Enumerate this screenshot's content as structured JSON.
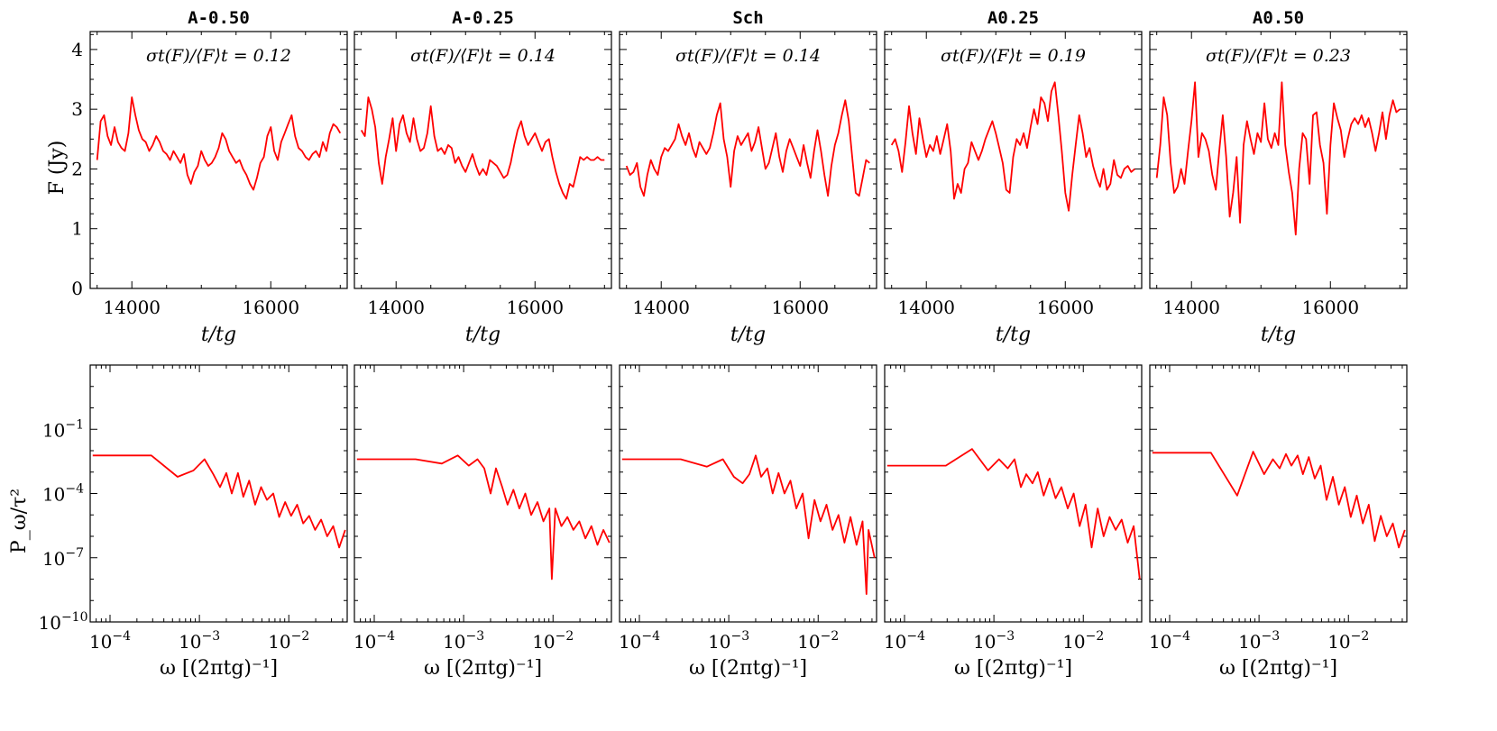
{
  "figure": {
    "colors": {
      "line": "#ff0000",
      "axis": "#000000",
      "background": "#ffffff"
    },
    "row_labels": {
      "top_ylabel": "F (Jy)",
      "top_xlabel": "t/t_g",
      "bottom_ylabel": "P_ω/τ²",
      "bottom_xlabel": "ω [(2πt_g)⁻¹]"
    }
  },
  "chart_data": [
    {
      "type": "line",
      "panel": "A-0.50",
      "row": "light curve",
      "title": "A-0.50",
      "annotation": "σt(F)/⟨F⟩t = 0.12",
      "xlabel": "t/tg",
      "ylabel": "F (Jy)",
      "xlim": [
        13400,
        17100
      ],
      "ylim": [
        0,
        4.3
      ],
      "xticks": [
        14000,
        16000
      ],
      "yticks": [
        0,
        1,
        2,
        3,
        4
      ],
      "x": [
        13500,
        13550,
        13600,
        13650,
        13700,
        13750,
        13800,
        13850,
        13900,
        13950,
        14000,
        14050,
        14100,
        14150,
        14200,
        14250,
        14300,
        14350,
        14400,
        14450,
        14500,
        14550,
        14600,
        14650,
        14700,
        14750,
        14800,
        14850,
        14900,
        14950,
        15000,
        15050,
        15100,
        15150,
        15200,
        15250,
        15300,
        15350,
        15400,
        15450,
        15500,
        15550,
        15600,
        15650,
        15700,
        15750,
        15800,
        15850,
        15900,
        15950,
        16000,
        16050,
        16100,
        16150,
        16200,
        16250,
        16300,
        16350,
        16400,
        16450,
        16500,
        16550,
        16600,
        16650,
        16700,
        16750,
        16800,
        16850,
        16900,
        16950,
        17000
      ],
      "y": [
        2.15,
        2.8,
        2.9,
        2.55,
        2.4,
        2.7,
        2.45,
        2.35,
        2.3,
        2.6,
        3.2,
        2.9,
        2.65,
        2.5,
        2.45,
        2.3,
        2.4,
        2.55,
        2.45,
        2.3,
        2.25,
        2.15,
        2.3,
        2.2,
        2.1,
        2.25,
        1.9,
        1.75,
        1.95,
        2.05,
        2.3,
        2.15,
        2.05,
        2.1,
        2.2,
        2.35,
        2.6,
        2.5,
        2.3,
        2.2,
        2.1,
        2.15,
        2.0,
        1.9,
        1.75,
        1.65,
        1.85,
        2.1,
        2.2,
        2.55,
        2.7,
        2.3,
        2.15,
        2.45,
        2.6,
        2.75,
        2.9,
        2.55,
        2.35,
        2.3,
        2.2,
        2.15,
        2.25,
        2.3,
        2.2,
        2.45,
        2.3,
        2.6,
        2.75,
        2.7,
        2.6
      ]
    },
    {
      "type": "line",
      "panel": "A-0.25",
      "row": "light curve",
      "title": "A-0.25",
      "annotation": "σt(F)/⟨F⟩t = 0.14",
      "xlabel": "t/tg",
      "ylabel": "F (Jy)",
      "xlim": [
        13400,
        17100
      ],
      "ylim": [
        0,
        4.3
      ],
      "xticks": [
        14000,
        16000
      ],
      "yticks": [
        0,
        1,
        2,
        3,
        4
      ],
      "x": [
        13500,
        13550,
        13600,
        13650,
        13700,
        13750,
        13800,
        13850,
        13900,
        13950,
        14000,
        14050,
        14100,
        14150,
        14200,
        14250,
        14300,
        14350,
        14400,
        14450,
        14500,
        14550,
        14600,
        14650,
        14700,
        14750,
        14800,
        14850,
        14900,
        14950,
        15000,
        15050,
        15100,
        15150,
        15200,
        15250,
        15300,
        15350,
        15400,
        15450,
        15500,
        15550,
        15600,
        15650,
        15700,
        15750,
        15800,
        15850,
        15900,
        15950,
        16000,
        16050,
        16100,
        16150,
        16200,
        16250,
        16300,
        16350,
        16400,
        16450,
        16500,
        16550,
        16600,
        16650,
        16700,
        16750,
        16800,
        16850,
        16900,
        16950,
        17000
      ],
      "y": [
        2.65,
        2.55,
        3.2,
        3.0,
        2.7,
        2.1,
        1.75,
        2.2,
        2.5,
        2.85,
        2.3,
        2.75,
        2.9,
        2.6,
        2.45,
        2.85,
        2.5,
        2.3,
        2.35,
        2.6,
        3.05,
        2.55,
        2.3,
        2.35,
        2.25,
        2.4,
        2.35,
        2.1,
        2.2,
        2.05,
        1.95,
        2.1,
        2.25,
        2.05,
        1.9,
        2.0,
        1.9,
        2.15,
        2.1,
        2.05,
        1.95,
        1.85,
        1.9,
        2.1,
        2.4,
        2.65,
        2.8,
        2.55,
        2.4,
        2.5,
        2.6,
        2.45,
        2.3,
        2.45,
        2.5,
        2.2,
        1.95,
        1.75,
        1.6,
        1.5,
        1.75,
        1.7,
        1.95,
        2.2,
        2.15,
        2.2,
        2.15,
        2.15,
        2.2,
        2.15,
        2.15
      ]
    },
    {
      "type": "line",
      "panel": "Sch",
      "row": "light curve",
      "title": "Sch",
      "annotation": "σt(F)/⟨F⟩t = 0.14",
      "xlabel": "t/tg",
      "ylabel": "F (Jy)",
      "xlim": [
        13400,
        17100
      ],
      "ylim": [
        0,
        4.3
      ],
      "xticks": [
        14000,
        16000
      ],
      "yticks": [
        0,
        1,
        2,
        3,
        4
      ],
      "x": [
        13500,
        13550,
        13600,
        13650,
        13700,
        13750,
        13800,
        13850,
        13900,
        13950,
        14000,
        14050,
        14100,
        14150,
        14200,
        14250,
        14300,
        14350,
        14400,
        14450,
        14500,
        14550,
        14600,
        14650,
        14700,
        14750,
        14800,
        14850,
        14900,
        14950,
        15000,
        15050,
        15100,
        15150,
        15200,
        15250,
        15300,
        15350,
        15400,
        15450,
        15500,
        15550,
        15600,
        15650,
        15700,
        15750,
        15800,
        15850,
        15900,
        15950,
        16000,
        16050,
        16100,
        16150,
        16200,
        16250,
        16300,
        16350,
        16400,
        16450,
        16500,
        16550,
        16600,
        16650,
        16700,
        16750,
        16800,
        16850,
        16900,
        16950,
        17000
      ],
      "y": [
        2.05,
        1.9,
        1.95,
        2.1,
        1.7,
        1.55,
        1.9,
        2.15,
        2.0,
        1.9,
        2.2,
        2.35,
        2.3,
        2.4,
        2.5,
        2.75,
        2.55,
        2.4,
        2.6,
        2.35,
        2.2,
        2.45,
        2.35,
        2.25,
        2.35,
        2.6,
        2.9,
        3.1,
        2.5,
        2.2,
        1.7,
        2.3,
        2.55,
        2.4,
        2.5,
        2.6,
        2.3,
        2.45,
        2.7,
        2.35,
        2.0,
        2.1,
        2.35,
        2.6,
        2.2,
        1.95,
        2.3,
        2.5,
        2.35,
        2.2,
        2.05,
        2.4,
        2.1,
        1.85,
        2.3,
        2.65,
        2.3,
        1.9,
        1.55,
        2.05,
        2.4,
        2.6,
        2.9,
        3.15,
        2.8,
        2.2,
        1.6,
        1.55,
        1.85,
        2.15,
        2.1
      ]
    },
    {
      "type": "line",
      "panel": "A0.25",
      "row": "light curve",
      "title": "A0.25",
      "annotation": "σt(F)/⟨F⟩t = 0.19",
      "xlabel": "t/tg",
      "ylabel": "F (Jy)",
      "xlim": [
        13400,
        17100
      ],
      "ylim": [
        0,
        4.3
      ],
      "xticks": [
        14000,
        16000
      ],
      "yticks": [
        0,
        1,
        2,
        3,
        4
      ],
      "x": [
        13500,
        13550,
        13600,
        13650,
        13700,
        13750,
        13800,
        13850,
        13900,
        13950,
        14000,
        14050,
        14100,
        14150,
        14200,
        14250,
        14300,
        14350,
        14400,
        14450,
        14500,
        14550,
        14600,
        14650,
        14700,
        14750,
        14800,
        14850,
        14900,
        14950,
        15000,
        15050,
        15100,
        15150,
        15200,
        15250,
        15300,
        15350,
        15400,
        15450,
        15500,
        15550,
        15600,
        15650,
        15700,
        15750,
        15800,
        15850,
        15900,
        15950,
        16000,
        16050,
        16100,
        16150,
        16200,
        16250,
        16300,
        16350,
        16400,
        16450,
        16500,
        16550,
        16600,
        16650,
        16700,
        16750,
        16800,
        16850,
        16900,
        16950,
        17000
      ],
      "y": [
        2.4,
        2.5,
        2.3,
        1.95,
        2.45,
        3.05,
        2.6,
        2.25,
        2.85,
        2.5,
        2.2,
        2.4,
        2.3,
        2.55,
        2.25,
        2.5,
        2.75,
        2.3,
        1.5,
        1.75,
        1.6,
        2.0,
        2.1,
        2.45,
        2.3,
        2.15,
        2.3,
        2.5,
        2.65,
        2.8,
        2.6,
        2.35,
        2.1,
        1.65,
        1.6,
        2.2,
        2.5,
        2.4,
        2.6,
        2.35,
        2.7,
        3.0,
        2.75,
        3.2,
        3.1,
        2.8,
        3.3,
        3.45,
        2.9,
        2.3,
        1.6,
        1.3,
        1.9,
        2.4,
        2.9,
        2.6,
        2.2,
        2.35,
        2.05,
        1.85,
        1.7,
        2.0,
        1.65,
        1.75,
        2.15,
        1.9,
        1.85,
        2.0,
        2.05,
        1.95,
        2.0
      ]
    },
    {
      "type": "line",
      "panel": "A0.50",
      "row": "light curve",
      "title": "A0.50",
      "annotation": "σt(F)/⟨F⟩t = 0.23",
      "xlabel": "t/tg",
      "ylabel": "F (Jy)",
      "xlim": [
        13400,
        17100
      ],
      "ylim": [
        0,
        4.3
      ],
      "xticks": [
        14000,
        16000
      ],
      "yticks": [
        0,
        1,
        2,
        3,
        4
      ],
      "x": [
        13500,
        13550,
        13600,
        13650,
        13700,
        13750,
        13800,
        13850,
        13900,
        13950,
        14000,
        14050,
        14100,
        14150,
        14200,
        14250,
        14300,
        14350,
        14400,
        14450,
        14500,
        14550,
        14600,
        14650,
        14700,
        14750,
        14800,
        14850,
        14900,
        14950,
        15000,
        15050,
        15100,
        15150,
        15200,
        15250,
        15300,
        15350,
        15400,
        15450,
        15500,
        15550,
        15600,
        15650,
        15700,
        15750,
        15800,
        15850,
        15900,
        15950,
        16000,
        16050,
        16100,
        16150,
        16200,
        16250,
        16300,
        16350,
        16400,
        16450,
        16500,
        16550,
        16600,
        16650,
        16700,
        16750,
        16800,
        16850,
        16900,
        16950,
        17000
      ],
      "y": [
        1.85,
        2.4,
        3.2,
        2.9,
        2.1,
        1.6,
        1.7,
        2.0,
        1.75,
        2.3,
        2.8,
        3.45,
        2.2,
        2.6,
        2.5,
        2.3,
        1.9,
        1.65,
        2.3,
        2.9,
        2.2,
        1.2,
        1.6,
        2.2,
        1.1,
        2.4,
        2.8,
        2.5,
        2.25,
        2.6,
        2.45,
        3.1,
        2.5,
        2.35,
        2.6,
        2.4,
        3.45,
        2.4,
        1.95,
        1.6,
        0.9,
        2.0,
        2.6,
        2.5,
        1.75,
        2.9,
        2.95,
        2.4,
        2.1,
        1.25,
        2.4,
        3.1,
        2.85,
        2.65,
        2.2,
        2.5,
        2.75,
        2.85,
        2.75,
        2.9,
        2.7,
        2.85,
        2.6,
        2.3,
        2.6,
        2.95,
        2.5,
        2.9,
        3.15,
        2.95,
        3.0
      ]
    },
    {
      "type": "line",
      "panel": "A-0.50",
      "row": "power spectrum",
      "xlabel": "ω [(2πtg)⁻¹]",
      "ylabel": "Pω/τ²",
      "xscale": "log",
      "yscale": "log",
      "xlim": [
        6e-05,
        0.045
      ],
      "ylim": [
        1e-10,
        100.0
      ],
      "xticks": [
        0.0001,
        0.001,
        0.01
      ],
      "yticks": [
        1e-10,
        1e-07,
        0.0001,
        0.1
      ],
      "x": [
        6.4e-05,
        0.00029,
        0.00057,
        0.00086,
        0.00114,
        0.00143,
        0.0017,
        0.002,
        0.0023,
        0.0027,
        0.0031,
        0.0036,
        0.0042,
        0.0049,
        0.0057,
        0.0067,
        0.0078,
        0.0091,
        0.0106,
        0.0124,
        0.0145,
        0.0169,
        0.0197,
        0.023,
        0.0269,
        0.0314,
        0.0366,
        0.0428
      ],
      "y": [
        0.006,
        0.006,
        0.0006,
        0.0012,
        0.004,
        0.0008,
        0.0002,
        0.0009,
        0.0001,
        0.0009,
        7e-05,
        0.0004,
        3e-05,
        0.0002,
        5e-05,
        0.0001,
        8e-06,
        4e-05,
        9e-06,
        3e-05,
        4e-06,
        9e-06,
        2e-06,
        6e-06,
        1e-06,
        3e-06,
        3e-07,
        2e-06
      ]
    },
    {
      "type": "line",
      "panel": "A-0.25",
      "row": "power spectrum",
      "xlabel": "ω [(2πtg)⁻¹]",
      "ylabel": "Pω/τ²",
      "xscale": "log",
      "yscale": "log",
      "xlim": [
        6e-05,
        0.045
      ],
      "ylim": [
        1e-10,
        100.0
      ],
      "xticks": [
        0.0001,
        0.001,
        0.01
      ],
      "yticks": [
        1e-10,
        1e-07,
        0.0001,
        0.1
      ],
      "x": [
        6.4e-05,
        0.00029,
        0.00057,
        0.00086,
        0.00114,
        0.00143,
        0.0017,
        0.002,
        0.0023,
        0.0027,
        0.0031,
        0.0036,
        0.0042,
        0.0049,
        0.0057,
        0.0067,
        0.0078,
        0.0091,
        0.0097,
        0.0106,
        0.0124,
        0.0145,
        0.0169,
        0.0197,
        0.023,
        0.0269,
        0.0314,
        0.0366,
        0.0428
      ],
      "y": [
        0.004,
        0.004,
        0.0025,
        0.006,
        0.002,
        0.004,
        0.0015,
        0.0001,
        0.0015,
        0.0002,
        3e-05,
        0.00015,
        2e-05,
        0.0001,
        1e-05,
        4e-05,
        5e-06,
        2e-05,
        1e-08,
        2e-05,
        3e-06,
        8e-06,
        2e-06,
        5e-06,
        8e-07,
        3e-06,
        4e-07,
        2e-06,
        5e-07
      ]
    },
    {
      "type": "line",
      "panel": "Sch",
      "row": "power spectrum",
      "xlabel": "ω [(2πtg)⁻¹]",
      "ylabel": "Pω/τ²",
      "xscale": "log",
      "yscale": "log",
      "xlim": [
        6e-05,
        0.045
      ],
      "ylim": [
        1e-10,
        100.0
      ],
      "xticks": [
        0.0001,
        0.001,
        0.01
      ],
      "yticks": [
        1e-10,
        1e-07,
        0.0001,
        0.1
      ],
      "x": [
        6.4e-05,
        0.00029,
        0.00057,
        0.00086,
        0.00114,
        0.00143,
        0.0017,
        0.002,
        0.0023,
        0.0027,
        0.0031,
        0.0036,
        0.0042,
        0.0049,
        0.0057,
        0.0067,
        0.0078,
        0.0091,
        0.0106,
        0.0124,
        0.0145,
        0.0169,
        0.0197,
        0.023,
        0.0269,
        0.0314,
        0.0347,
        0.0366,
        0.0428
      ],
      "y": [
        0.004,
        0.004,
        0.0018,
        0.004,
        0.0006,
        0.0003,
        0.0008,
        0.006,
        0.0006,
        0.0015,
        0.0001,
        0.0009,
        0.0001,
        0.0004,
        2e-05,
        0.0001,
        8e-07,
        5e-05,
        5e-06,
        3e-05,
        2e-06,
        1e-05,
        5e-07,
        8e-06,
        4e-07,
        5e-06,
        2e-09,
        2e-06,
        1e-07
      ]
    },
    {
      "type": "line",
      "panel": "A0.25",
      "row": "power spectrum",
      "xlabel": "ω [(2πtg)⁻¹]",
      "ylabel": "Pω/τ²",
      "xscale": "log",
      "yscale": "log",
      "xlim": [
        6e-05,
        0.045
      ],
      "ylim": [
        1e-10,
        100.0
      ],
      "xticks": [
        0.0001,
        0.001,
        0.01
      ],
      "yticks": [
        1e-10,
        1e-07,
        0.0001,
        0.1
      ],
      "x": [
        6.4e-05,
        0.00029,
        0.00057,
        0.00086,
        0.00114,
        0.00143,
        0.0017,
        0.002,
        0.0023,
        0.0027,
        0.0031,
        0.0036,
        0.0042,
        0.0049,
        0.0057,
        0.0067,
        0.0078,
        0.0091,
        0.0106,
        0.0124,
        0.0145,
        0.0169,
        0.0197,
        0.023,
        0.0269,
        0.0314,
        0.0366,
        0.0428
      ],
      "y": [
        0.002,
        0.002,
        0.012,
        0.0012,
        0.004,
        0.0015,
        0.004,
        0.0002,
        0.0008,
        0.0003,
        0.001,
        8e-05,
        0.0005,
        6e-05,
        0.0002,
        2e-05,
        0.0001,
        3e-06,
        3e-05,
        3e-07,
        2e-05,
        1e-06,
        8e-06,
        2e-06,
        6e-06,
        5e-07,
        3e-06,
        1e-08
      ]
    },
    {
      "type": "line",
      "panel": "A0.50",
      "row": "power spectrum",
      "xlabel": "ω [(2πtg)⁻¹]",
      "ylabel": "Pω/τ²",
      "xscale": "log",
      "yscale": "log",
      "xlim": [
        6e-05,
        0.045
      ],
      "ylim": [
        1e-10,
        100.0
      ],
      "xticks": [
        0.0001,
        0.001,
        0.01
      ],
      "yticks": [
        1e-10,
        1e-07,
        0.0001,
        0.1
      ],
      "x": [
        6.4e-05,
        0.00029,
        0.00057,
        0.00086,
        0.00114,
        0.00143,
        0.0017,
        0.002,
        0.0023,
        0.0027,
        0.0031,
        0.0036,
        0.0042,
        0.0049,
        0.0057,
        0.0067,
        0.0078,
        0.0091,
        0.0106,
        0.0124,
        0.0145,
        0.0169,
        0.0197,
        0.023,
        0.0269,
        0.0314,
        0.0366,
        0.0428
      ],
      "y": [
        0.008,
        0.008,
        8e-05,
        0.009,
        0.0008,
        0.004,
        0.0015,
        0.007,
        0.002,
        0.006,
        0.0008,
        0.005,
        0.0005,
        0.002,
        5e-05,
        0.0006,
        3e-05,
        0.0002,
        8e-06,
        8e-05,
        4e-06,
        3e-05,
        6e-07,
        9e-06,
        1e-06,
        4e-06,
        3e-07,
        2e-06
      ]
    }
  ]
}
